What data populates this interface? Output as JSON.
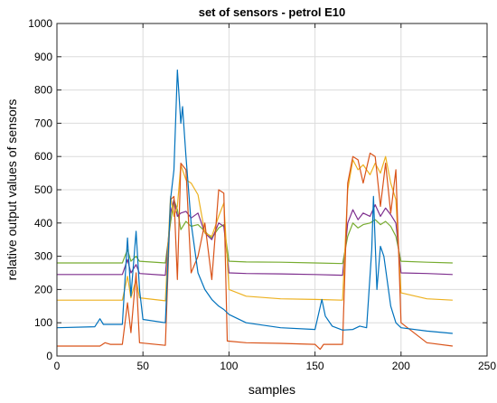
{
  "chart_data": {
    "type": "line",
    "title": "set of sensors - petrol E10",
    "xlabel": "samples",
    "ylabel": "relative output values of sensors",
    "xlim": [
      0,
      250
    ],
    "ylim": [
      0,
      1000
    ],
    "xticks": [
      0,
      50,
      100,
      150,
      200,
      250
    ],
    "yticks": [
      0,
      100,
      200,
      300,
      400,
      500,
      600,
      700,
      800,
      900,
      1000
    ],
    "grid": true,
    "series": [
      {
        "color": "#77ac30",
        "points": [
          [
            0,
            280
          ],
          [
            38,
            280
          ],
          [
            41,
            320
          ],
          [
            43,
            285
          ],
          [
            46,
            300
          ],
          [
            48,
            285
          ],
          [
            63,
            280
          ],
          [
            66,
            400
          ],
          [
            68,
            470
          ],
          [
            70,
            440
          ],
          [
            72,
            380
          ],
          [
            75,
            405
          ],
          [
            78,
            390
          ],
          [
            82,
            395
          ],
          [
            86,
            375
          ],
          [
            90,
            355
          ],
          [
            94,
            385
          ],
          [
            97,
            395
          ],
          [
            100,
            285
          ],
          [
            110,
            283
          ],
          [
            130,
            282
          ],
          [
            150,
            280
          ],
          [
            166,
            278
          ],
          [
            169,
            360
          ],
          [
            172,
            400
          ],
          [
            175,
            385
          ],
          [
            178,
            395
          ],
          [
            182,
            400
          ],
          [
            185,
            410
          ],
          [
            188,
            395
          ],
          [
            191,
            405
          ],
          [
            194,
            390
          ],
          [
            197,
            360
          ],
          [
            200,
            285
          ],
          [
            215,
            282
          ],
          [
            230,
            280
          ]
        ]
      },
      {
        "color": "#7e2f8e",
        "points": [
          [
            0,
            245
          ],
          [
            38,
            245
          ],
          [
            41,
            290
          ],
          [
            43,
            250
          ],
          [
            46,
            275
          ],
          [
            48,
            248
          ],
          [
            63,
            243
          ],
          [
            66,
            430
          ],
          [
            68,
            470
          ],
          [
            70,
            420
          ],
          [
            72,
            430
          ],
          [
            75,
            435
          ],
          [
            78,
            415
          ],
          [
            82,
            430
          ],
          [
            86,
            370
          ],
          [
            90,
            350
          ],
          [
            94,
            400
          ],
          [
            97,
            390
          ],
          [
            100,
            250
          ],
          [
            110,
            248
          ],
          [
            130,
            247
          ],
          [
            150,
            245
          ],
          [
            166,
            243
          ],
          [
            169,
            400
          ],
          [
            172,
            440
          ],
          [
            175,
            410
          ],
          [
            178,
            430
          ],
          [
            182,
            420
          ],
          [
            185,
            455
          ],
          [
            188,
            420
          ],
          [
            191,
            445
          ],
          [
            194,
            425
          ],
          [
            197,
            400
          ],
          [
            200,
            250
          ],
          [
            215,
            248
          ],
          [
            230,
            245
          ]
        ]
      },
      {
        "color": "#edb120",
        "points": [
          [
            0,
            168
          ],
          [
            38,
            168
          ],
          [
            41,
            240
          ],
          [
            43,
            175
          ],
          [
            46,
            230
          ],
          [
            48,
            175
          ],
          [
            63,
            166
          ],
          [
            66,
            480
          ],
          [
            68,
            420
          ],
          [
            70,
            450
          ],
          [
            72,
            575
          ],
          [
            75,
            530
          ],
          [
            78,
            520
          ],
          [
            82,
            485
          ],
          [
            86,
            370
          ],
          [
            90,
            360
          ],
          [
            94,
            420
          ],
          [
            97,
            460
          ],
          [
            100,
            200
          ],
          [
            110,
            180
          ],
          [
            130,
            172
          ],
          [
            150,
            170
          ],
          [
            166,
            168
          ],
          [
            169,
            500
          ],
          [
            172,
            590
          ],
          [
            175,
            560
          ],
          [
            178,
            575
          ],
          [
            182,
            545
          ],
          [
            185,
            580
          ],
          [
            188,
            550
          ],
          [
            191,
            600
          ],
          [
            194,
            520
          ],
          [
            197,
            470
          ],
          [
            200,
            190
          ],
          [
            215,
            172
          ],
          [
            230,
            168
          ]
        ]
      },
      {
        "color": "#d95319",
        "points": [
          [
            0,
            30
          ],
          [
            25,
            30
          ],
          [
            28,
            40
          ],
          [
            31,
            35
          ],
          [
            38,
            35
          ],
          [
            41,
            160
          ],
          [
            43,
            70
          ],
          [
            46,
            250
          ],
          [
            48,
            40
          ],
          [
            63,
            32
          ],
          [
            66,
            470
          ],
          [
            68,
            480
          ],
          [
            70,
            230
          ],
          [
            72,
            580
          ],
          [
            75,
            560
          ],
          [
            78,
            250
          ],
          [
            82,
            300
          ],
          [
            86,
            400
          ],
          [
            90,
            230
          ],
          [
            94,
            500
          ],
          [
            97,
            490
          ],
          [
            99,
            45
          ],
          [
            110,
            40
          ],
          [
            130,
            38
          ],
          [
            150,
            35
          ],
          [
            153,
            20
          ],
          [
            155,
            35
          ],
          [
            166,
            35
          ],
          [
            169,
            520
          ],
          [
            172,
            600
          ],
          [
            175,
            590
          ],
          [
            178,
            520
          ],
          [
            182,
            610
          ],
          [
            185,
            600
          ],
          [
            188,
            450
          ],
          [
            191,
            580
          ],
          [
            194,
            430
          ],
          [
            197,
            560
          ],
          [
            200,
            100
          ],
          [
            215,
            40
          ],
          [
            230,
            30
          ]
        ]
      },
      {
        "color": "#0072bd",
        "points": [
          [
            0,
            85
          ],
          [
            22,
            88
          ],
          [
            25,
            112
          ],
          [
            27,
            95
          ],
          [
            38,
            95
          ],
          [
            41,
            355
          ],
          [
            43,
            180
          ],
          [
            46,
            375
          ],
          [
            48,
            200
          ],
          [
            50,
            110
          ],
          [
            63,
            100
          ],
          [
            66,
            470
          ],
          [
            68,
            560
          ],
          [
            70,
            860
          ],
          [
            72,
            700
          ],
          [
            73,
            750
          ],
          [
            75,
            600
          ],
          [
            78,
            400
          ],
          [
            82,
            250
          ],
          [
            86,
            200
          ],
          [
            90,
            170
          ],
          [
            94,
            150
          ],
          [
            97,
            140
          ],
          [
            100,
            125
          ],
          [
            110,
            100
          ],
          [
            130,
            85
          ],
          [
            150,
            80
          ],
          [
            154,
            170
          ],
          [
            156,
            120
          ],
          [
            160,
            90
          ],
          [
            166,
            78
          ],
          [
            172,
            80
          ],
          [
            176,
            90
          ],
          [
            180,
            85
          ],
          [
            183,
            320
          ],
          [
            184,
            480
          ],
          [
            186,
            200
          ],
          [
            188,
            330
          ],
          [
            190,
            300
          ],
          [
            194,
            150
          ],
          [
            197,
            100
          ],
          [
            200,
            85
          ],
          [
            215,
            75
          ],
          [
            230,
            68
          ]
        ]
      }
    ]
  }
}
